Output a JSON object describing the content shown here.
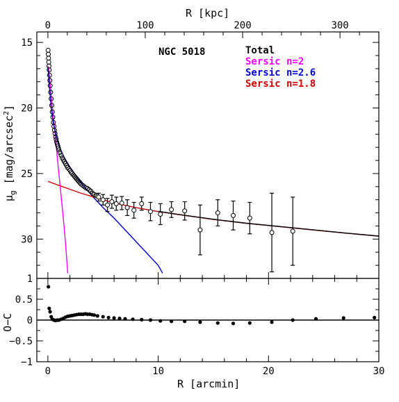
{
  "chart_data": [
    {
      "type": "scatter",
      "name": "NGC 5018",
      "ylabel": "μg [mag/arcsec²]",
      "ylabel_main": "μ",
      "ylabel_sub": "g",
      "ylabel_rest": " [mag/arcsec",
      "ylabel_sup": "2",
      "ylabel_close": "]",
      "top_xlabel": "R [kpc]",
      "xlim": [
        -1,
        30
      ],
      "ylim": [
        33,
        14.2
      ],
      "y_inverted": true,
      "kpc_per_arcmin": 11.33,
      "top_ticks": [
        "0",
        "100",
        "200",
        "300"
      ],
      "top_tick_values": [
        0,
        100,
        200,
        300
      ],
      "y_ticks": [
        "15",
        "20",
        "25",
        "30"
      ],
      "y_tick_values": [
        15,
        20,
        25,
        30
      ],
      "legend_position": "top-right",
      "legend": [
        {
          "label": "Total",
          "color": "#000000"
        },
        {
          "label": "Sersic n=2",
          "color": "#ff00ff"
        },
        {
          "label": "Sersic n=2.6",
          "color": "#0000cc"
        },
        {
          "label": "Sersic n=1.8",
          "color": "#cc0000"
        }
      ],
      "components": [
        {
          "label": "Sersic n=2",
          "color": "#ff00ff",
          "x": [
            0.02,
            0.1,
            0.2,
            0.3,
            0.45,
            0.6,
            0.8,
            1.0,
            1.2,
            1.4,
            1.6,
            1.8
          ],
          "y": [
            16.8,
            17.2,
            18.0,
            19.0,
            20.3,
            21.5,
            23.3,
            25.0,
            26.7,
            28.4,
            30.3,
            32.6
          ]
        },
        {
          "label": "Sersic n=2.6",
          "color": "#0000cc",
          "x": [
            0.02,
            0.1,
            0.3,
            0.5,
            1.0,
            1.5,
            2.0,
            3.0,
            4.0,
            5.0,
            6.0,
            7.0,
            8.0,
            9.0,
            10.0,
            10.4
          ],
          "y": [
            16.9,
            18.0,
            20.0,
            21.2,
            22.9,
            23.8,
            24.5,
            25.7,
            26.7,
            27.6,
            28.4,
            29.3,
            30.2,
            31.1,
            32.0,
            32.6
          ]
        },
        {
          "label": "Sersic n=1.8",
          "color": "#cc0000",
          "x": [
            0.02,
            0.5,
            1.0,
            2.0,
            3.0,
            4.0,
            5.0,
            6.0,
            8.0,
            10.0,
            12.0,
            15.0,
            18.0,
            21.0,
            24.0,
            27.0,
            30.0
          ],
          "y": [
            25.6,
            25.75,
            25.9,
            26.2,
            26.5,
            26.75,
            27.0,
            27.25,
            27.6,
            27.9,
            28.15,
            28.5,
            28.8,
            29.05,
            29.3,
            29.55,
            29.78
          ]
        },
        {
          "label": "Total",
          "color": "#000000",
          "x": [
            10.0,
            12.0,
            15.0,
            18.0,
            21.0,
            24.0,
            27.0,
            30.0
          ],
          "y": [
            27.88,
            28.14,
            28.49,
            28.79,
            29.04,
            29.29,
            29.54,
            29.77
          ]
        }
      ],
      "observed": {
        "x": [
          0.02,
          0.04,
          0.06,
          0.08,
          0.1,
          0.12,
          0.15,
          0.18,
          0.21,
          0.25,
          0.3,
          0.35,
          0.4,
          0.45,
          0.5,
          0.55,
          0.6,
          0.65,
          0.7,
          0.75,
          0.8,
          0.85,
          0.9,
          0.95,
          1.0,
          1.1,
          1.2,
          1.3,
          1.4,
          1.5,
          1.6,
          1.7,
          1.8,
          1.9,
          2.0,
          2.1,
          2.2,
          2.3,
          2.4,
          2.5,
          2.6,
          2.7,
          2.8,
          2.9,
          3.0,
          3.15,
          3.3,
          3.45,
          3.6,
          3.75,
          3.9,
          4.05,
          4.2,
          4.4
        ],
        "y": [
          15.6,
          15.9,
          16.2,
          16.5,
          16.8,
          17.1,
          17.5,
          17.9,
          18.3,
          18.8,
          19.3,
          19.8,
          20.3,
          20.7,
          21.1,
          21.4,
          21.7,
          21.95,
          22.2,
          22.4,
          22.6,
          22.75,
          22.9,
          23.05,
          23.2,
          23.4,
          23.6,
          23.8,
          23.95,
          24.1,
          24.25,
          24.4,
          24.55,
          24.65,
          24.75,
          24.9,
          25.0,
          25.1,
          25.2,
          25.3,
          25.4,
          25.5,
          25.6,
          25.7,
          25.8,
          25.9,
          26.0,
          26.1,
          26.15,
          26.25,
          26.35,
          26.5,
          26.6,
          26.7
        ]
      },
      "observed_errorbars": {
        "x": [
          4.6,
          5.0,
          5.4,
          5.8,
          6.2,
          6.7,
          7.2,
          7.8,
          8.5,
          9.3,
          10.2,
          11.2,
          12.4,
          13.8,
          15.4,
          16.8,
          18.3,
          20.3,
          22.2
        ],
        "y": [
          26.8,
          27.0,
          27.4,
          27.15,
          27.3,
          27.25,
          27.6,
          27.8,
          27.3,
          27.9,
          28.1,
          27.75,
          27.85,
          29.3,
          28.0,
          28.2,
          28.4,
          29.5,
          29.4
        ],
        "err": [
          0.3,
          0.4,
          0.5,
          0.5,
          0.5,
          0.5,
          0.6,
          0.6,
          0.5,
          0.7,
          0.8,
          0.6,
          0.7,
          1.9,
          1.0,
          1.1,
          1.2,
          3.0,
          2.6
        ]
      }
    },
    {
      "type": "scatter",
      "name": "residuals",
      "xlabel": "R [arcmin]",
      "ylabel": "O−C",
      "xlim": [
        -1,
        30
      ],
      "ylim": [
        -1,
        1
      ],
      "x_ticks": [
        "0",
        "10",
        "20",
        "30"
      ],
      "x_tick_values": [
        0,
        10,
        20,
        30
      ],
      "y_ticks": [
        "1",
        "0.5",
        "0",
        "−0.5",
        "−1"
      ],
      "y_tick_values": [
        1,
        0.5,
        0,
        -0.5,
        -1
      ],
      "zero_line": 0,
      "points": {
        "x": [
          0.05,
          0.12,
          0.2,
          0.3,
          0.4,
          0.55,
          0.7,
          0.85,
          1.0,
          1.2,
          1.4,
          1.6,
          1.8,
          2.0,
          2.2,
          2.4,
          2.6,
          2.8,
          3.0,
          3.2,
          3.4,
          3.6,
          3.8,
          4.0,
          4.2,
          4.5,
          5.0,
          5.5,
          6.0,
          6.5,
          7.0,
          7.7,
          8.5,
          9.3,
          10.2,
          11.2,
          12.4,
          13.8,
          15.4,
          16.8,
          18.3,
          20.3,
          22.2,
          24.3,
          26.8,
          29.6
        ],
        "y": [
          0.8,
          0.28,
          0.2,
          0.08,
          0.02,
          0.0,
          -0.01,
          0.0,
          0.0,
          0.02,
          0.04,
          0.07,
          0.09,
          0.1,
          0.11,
          0.12,
          0.13,
          0.14,
          0.14,
          0.14,
          0.15,
          0.14,
          0.14,
          0.13,
          0.12,
          0.1,
          0.08,
          0.06,
          0.05,
          0.04,
          0.03,
          0.02,
          0.01,
          0.0,
          -0.02,
          -0.03,
          -0.03,
          -0.05,
          -0.07,
          -0.08,
          -0.07,
          -0.05,
          0.0,
          0.03,
          0.05,
          0.06
        ]
      }
    }
  ]
}
